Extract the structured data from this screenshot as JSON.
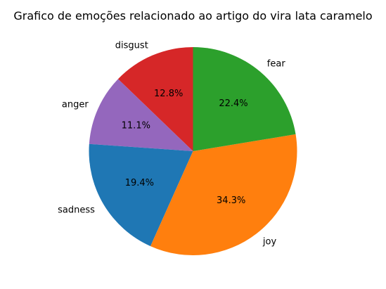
{
  "chart_data": {
    "type": "pie",
    "title": "Grafico de emoções relacionado ao artigo do vira lata caramelo",
    "start_angle_deg": 90,
    "direction": "counterclockwise",
    "slices": [
      {
        "label": "disgust",
        "value": 12.8,
        "display": "12.8%",
        "color": "#d62728"
      },
      {
        "label": "anger",
        "value": 11.1,
        "display": "11.1%",
        "color": "#9467bd"
      },
      {
        "label": "sadness",
        "value": 19.4,
        "display": "19.4%",
        "color": "#1f77b4"
      },
      {
        "label": "joy",
        "value": 34.3,
        "display": "34.3%",
        "color": "#ff7f0e"
      },
      {
        "label": "fear",
        "value": 22.4,
        "display": "22.4%",
        "color": "#2ca02c"
      }
    ]
  }
}
